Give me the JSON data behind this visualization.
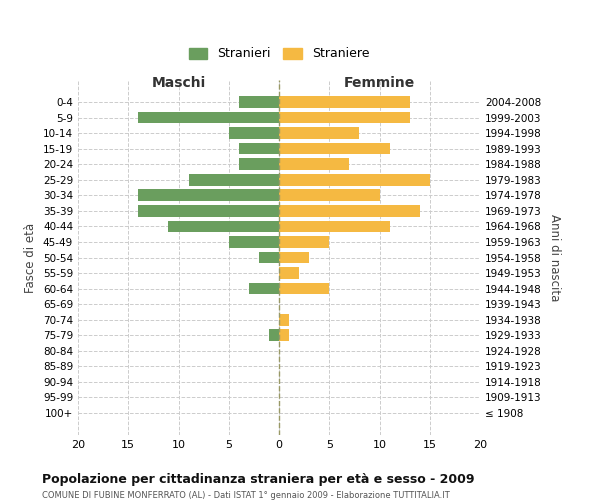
{
  "age_groups": [
    "0-4",
    "5-9",
    "10-14",
    "15-19",
    "20-24",
    "25-29",
    "30-34",
    "35-39",
    "40-44",
    "45-49",
    "50-54",
    "55-59",
    "60-64",
    "65-69",
    "70-74",
    "75-79",
    "80-84",
    "85-89",
    "90-94",
    "95-99",
    "100+"
  ],
  "birth_years": [
    "2004-2008",
    "1999-2003",
    "1994-1998",
    "1989-1993",
    "1984-1988",
    "1979-1983",
    "1974-1978",
    "1969-1973",
    "1964-1968",
    "1959-1963",
    "1954-1958",
    "1949-1953",
    "1944-1948",
    "1939-1943",
    "1934-1938",
    "1929-1933",
    "1924-1928",
    "1919-1923",
    "1914-1918",
    "1909-1913",
    "≤ 1908"
  ],
  "maschi": [
    4,
    14,
    5,
    4,
    4,
    9,
    14,
    14,
    11,
    5,
    2,
    0,
    3,
    0,
    0,
    1,
    0,
    0,
    0,
    0,
    0
  ],
  "femmine": [
    13,
    13,
    8,
    11,
    7,
    15,
    10,
    14,
    11,
    5,
    3,
    2,
    5,
    0,
    1,
    1,
    0,
    0,
    0,
    0,
    0
  ],
  "maschi_color": "#6a9e5e",
  "femmine_color": "#f5b942",
  "background_color": "#ffffff",
  "grid_color": "#cccccc",
  "title": "Popolazione per cittadinanza straniera per età e sesso - 2009",
  "subtitle": "COMUNE DI FUBINE MONFERRATO (AL) - Dati ISTAT 1° gennaio 2009 - Elaborazione TUTTITALIA.IT",
  "xlabel_left": "Maschi",
  "xlabel_right": "Femmine",
  "ylabel_left": "Fasce di età",
  "ylabel_right": "Anni di nascita",
  "legend_stranieri": "Stranieri",
  "legend_straniere": "Straniere",
  "xlim": 20
}
